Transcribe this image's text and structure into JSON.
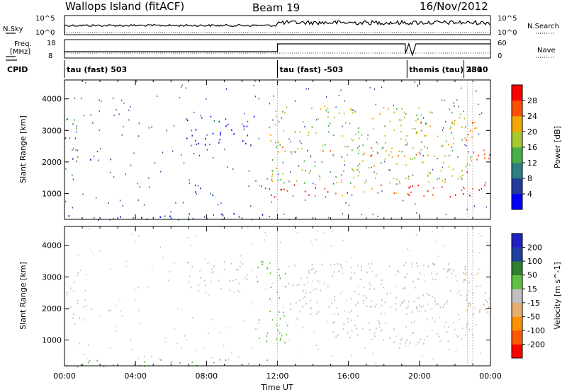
{
  "header": {
    "title": "Wallops Island (fitACF)",
    "beam": "Beam 19",
    "date": "16/Nov/2012"
  },
  "top_panels": {
    "nsky_label": "N.Sky",
    "nsky_ticks": [
      "10^5",
      "10^0"
    ],
    "nsearch_label": "N.Search",
    "nsearch_ticks": [
      "10^5",
      "10^0"
    ],
    "freq_label_1": "Freq.",
    "freq_label_2": "[MHz]",
    "freq_ticks": [
      "18",
      "8"
    ],
    "nave_label": "Nave",
    "nave_ticks": [
      "60",
      "0"
    ]
  },
  "cpid": {
    "label": "CPID",
    "segments": [
      {
        "label": "tau (fast) 503",
        "start_hour": 0
      },
      {
        "label": "tau (fast) -503",
        "start_hour": 12
      },
      {
        "label": "themis (tau) 3310",
        "start_hour": 19.3
      },
      {
        "label": "280",
        "start_hour": 22.5
      }
    ]
  },
  "chart_data": [
    {
      "type": "heatmap",
      "name": "power",
      "ylabel": "Slant Range [km]",
      "xlabel": "",
      "xlim_hours": [
        0,
        24
      ],
      "ylim": [
        180,
        4600
      ],
      "yticks": [
        "1000",
        "2000",
        "3000",
        "4000"
      ],
      "colorbar_label": "Power [dB]",
      "colorbar_ticks": [
        "4",
        "8",
        "12",
        "16",
        "20",
        "24",
        "28"
      ],
      "colorbar_range": [
        0,
        30
      ],
      "colors": [
        "#0000ff",
        "#223a9a",
        "#2e7f7f",
        "#48b048",
        "#a8c830",
        "#f0a800",
        "#ff5000",
        "#ff0000"
      ],
      "echo_regions": [
        {
          "t0": 0.0,
          "t1": 0.9,
          "r0": 1500,
          "r1": 3400,
          "value": 10
        },
        {
          "t0": 1.0,
          "t1": 3.0,
          "r0": 1950,
          "r1": 2150,
          "value": 5
        },
        {
          "t0": 6.8,
          "t1": 10.8,
          "r0": 2500,
          "r1": 3500,
          "value": 4
        },
        {
          "t0": 7.0,
          "t1": 8.6,
          "r0": 900,
          "r1": 1300,
          "value": 5
        },
        {
          "t0": 0.0,
          "t1": 12.0,
          "r0": 180,
          "r1": 400,
          "value": 5
        },
        {
          "t0": 10.8,
          "t1": 23.8,
          "r0": 850,
          "r1": 1300,
          "value": 26
        },
        {
          "t0": 12.0,
          "t1": 22.0,
          "r0": 2200,
          "r1": 2500,
          "value": 22
        },
        {
          "t0": 11.5,
          "t1": 23.0,
          "r0": 1300,
          "r1": 3800,
          "value": 17
        },
        {
          "t0": 22.5,
          "t1": 24.0,
          "r0": 1700,
          "r1": 3300,
          "value": 24
        }
      ]
    },
    {
      "type": "heatmap",
      "name": "velocity",
      "ylabel": "Slant Range [km]",
      "xlabel": "Time UT",
      "xlim_hours": [
        0,
        24
      ],
      "xticks": [
        "00:00",
        "04:00",
        "08:00",
        "12:00",
        "16:00",
        "20:00",
        "00:00"
      ],
      "ylim": [
        180,
        4600
      ],
      "yticks": [
        "1000",
        "2000",
        "3000",
        "4000"
      ],
      "colorbar_label": "Velocity [m s^-1]",
      "colorbar_ticks": [
        "200",
        "100",
        "50",
        "15",
        "-15",
        "-50",
        "-100",
        "-200"
      ],
      "colors": [
        "#ff0000",
        "#ff5a00",
        "#ff9000",
        "#e8b070",
        "#c0c0c0",
        "#60c040",
        "#308030",
        "#2040a0",
        "#2020c0"
      ],
      "echo_regions": [
        {
          "t0": 0.0,
          "t1": 0.9,
          "r0": 1500,
          "r1": 3400,
          "value": 0
        },
        {
          "t0": 1.0,
          "t1": 3.0,
          "r0": 1950,
          "r1": 2150,
          "value": 0
        },
        {
          "t0": 6.8,
          "t1": 10.8,
          "r0": 2500,
          "r1": 3500,
          "value": 0
        },
        {
          "t0": 0.0,
          "t1": 12.0,
          "r0": 180,
          "r1": 400,
          "value": 20
        },
        {
          "t0": 10.8,
          "t1": 12.5,
          "r0": 900,
          "r1": 3600,
          "value": 40
        },
        {
          "t0": 12.5,
          "t1": 23.0,
          "r0": 900,
          "r1": 3500,
          "value": 0
        },
        {
          "t0": 13.0,
          "t1": 22.0,
          "r0": 2000,
          "r1": 2300,
          "value": 0
        },
        {
          "t0": 22.5,
          "t1": 24.0,
          "r0": 1700,
          "r1": 3300,
          "value": -30
        }
      ]
    }
  ]
}
